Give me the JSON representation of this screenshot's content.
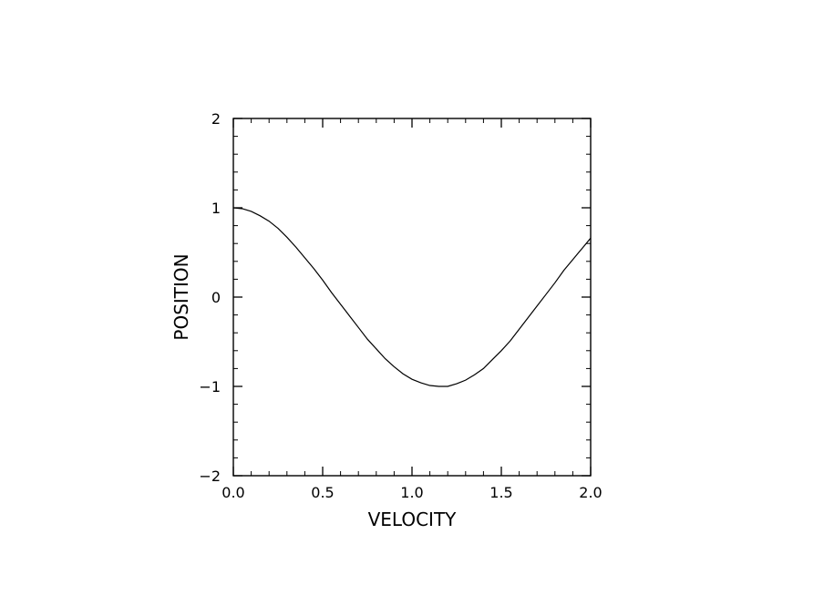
{
  "chart_data": {
    "type": "line",
    "title": "",
    "xlabel": "VELOCITY",
    "ylabel": "POSITION",
    "xlim": [
      0.0,
      2.0
    ],
    "ylim": [
      -2,
      2
    ],
    "x_ticks": [
      {
        "value": 0.0,
        "label": "0.0"
      },
      {
        "value": 0.5,
        "label": "0.5"
      },
      {
        "value": 1.0,
        "label": "1.0"
      },
      {
        "value": 1.5,
        "label": "1.5"
      },
      {
        "value": 2.0,
        "label": "2.0"
      }
    ],
    "y_ticks": [
      {
        "value": -2,
        "label": "−2"
      },
      {
        "value": -1,
        "label": "−1"
      },
      {
        "value": 0,
        "label": "0"
      },
      {
        "value": 1,
        "label": "1"
      },
      {
        "value": 2,
        "label": "2"
      }
    ],
    "x_minor_step": 0.1,
    "y_minor_step": 0.2,
    "grid": false,
    "line_color": "#000000",
    "series": [
      {
        "x": [
          0.0,
          0.05,
          0.1,
          0.15,
          0.2,
          0.25,
          0.3,
          0.35,
          0.4,
          0.45,
          0.5,
          0.55,
          0.6,
          0.65,
          0.7,
          0.75,
          0.8,
          0.85,
          0.9,
          0.95,
          1.0,
          1.05,
          1.1,
          1.15,
          1.2,
          1.25,
          1.3,
          1.35,
          1.4,
          1.45,
          1.5,
          1.55,
          1.6,
          1.65,
          1.7,
          1.75,
          1.8,
          1.85,
          1.9,
          1.95,
          2.0
        ],
        "y": [
          1.0,
          0.99,
          0.96,
          0.91,
          0.85,
          0.77,
          0.67,
          0.56,
          0.44,
          0.32,
          0.19,
          0.05,
          -0.08,
          -0.21,
          -0.34,
          -0.47,
          -0.58,
          -0.69,
          -0.78,
          -0.86,
          -0.92,
          -0.96,
          -0.99,
          -1.0,
          -1.0,
          -0.97,
          -0.93,
          -0.87,
          -0.8,
          -0.7,
          -0.6,
          -0.49,
          -0.36,
          -0.23,
          -0.1,
          0.03,
          0.16,
          0.3,
          0.42,
          0.54,
          0.66
        ],
        "note_placeholder": ""
      }
    ]
  }
}
